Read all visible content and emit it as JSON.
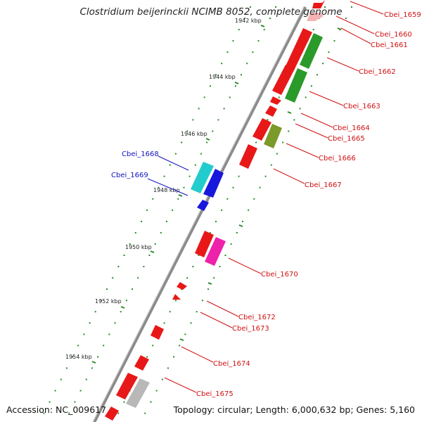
{
  "title": "Clostridium beijerinckii NCIMB 8052, complete genome",
  "accession": "Accession: NC_009617",
  "topology": "Topology: circular; Length: 6,000,632 bp; Genes: 5,160",
  "ticks": [
    "1942 kbp",
    "1944 kbp",
    "1946 kbp",
    "1948 kbp",
    "1950 kbp",
    "1952 kbp",
    "1954 kbp"
  ],
  "colors": {
    "backbone": "#888888",
    "tick_dots": "#2a8a2a",
    "red_gene": "#e81818",
    "green_gene": "#2a9a2a",
    "olive_gene": "#7a9a2a",
    "cyan_gene": "#22cccc",
    "blue_gene": "#1818dd",
    "magenta_gene": "#ee22aa",
    "grey_gene": "#b8b8b8",
    "red_label": "#d01010",
    "blue_label": "#1010c0"
  },
  "genes": [
    {
      "name": "Cbei_1659",
      "color": "red"
    },
    {
      "name": "Cbei_1660",
      "color": "red"
    },
    {
      "name": "Cbei_1661",
      "color": "red"
    },
    {
      "name": "Cbei_1662",
      "color": "red"
    },
    {
      "name": "Cbei_1663",
      "color": "red"
    },
    {
      "name": "Cbei_1664",
      "color": "red"
    },
    {
      "name": "Cbei_1665",
      "color": "red"
    },
    {
      "name": "Cbei_1666",
      "color": "red"
    },
    {
      "name": "Cbei_1667",
      "color": "red"
    },
    {
      "name": "Cbei_1668",
      "color": "blue"
    },
    {
      "name": "Cbei_1669",
      "color": "blue"
    },
    {
      "name": "Cbei_1670",
      "color": "red"
    },
    {
      "name": "Cbei_1672",
      "color": "red"
    },
    {
      "name": "Cbei_1673",
      "color": "red"
    },
    {
      "name": "Cbei_1674",
      "color": "red"
    },
    {
      "name": "Cbei_1675",
      "color": "red"
    }
  ]
}
